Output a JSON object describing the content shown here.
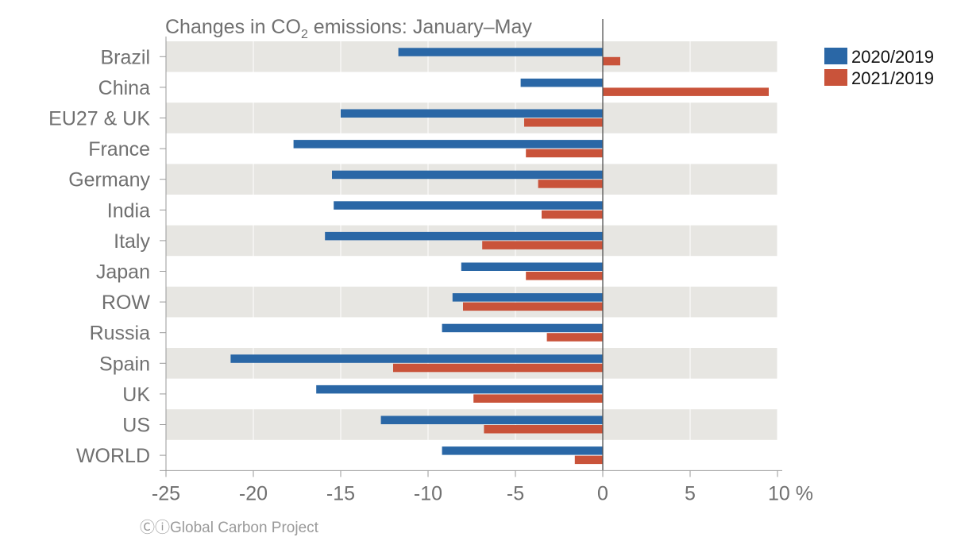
{
  "title": {
    "before": "Changes in CO",
    "sub": "2",
    "after": " emissions: January–May"
  },
  "credit": "ⒸⓘGlobal Carbon Project",
  "colors": {
    "series_2020": "#2a67a6",
    "series_2021": "#c9533a",
    "band": "#e7e6e2",
    "axis_text": "#707070"
  },
  "chart_data": {
    "type": "bar",
    "orientation": "horizontal",
    "categories": [
      "Brazil",
      "China",
      "EU27 & UK",
      "France",
      "Germany",
      "India",
      "Italy",
      "Japan",
      "ROW",
      "Russia",
      "Spain",
      "UK",
      "US",
      "WORLD"
    ],
    "series": [
      {
        "name": "2020/2019",
        "values": [
          -11.7,
          -4.7,
          -15.0,
          -17.7,
          -15.5,
          -15.4,
          -15.9,
          -8.1,
          -8.6,
          -9.2,
          -21.3,
          -16.4,
          -12.7,
          -9.2
        ]
      },
      {
        "name": "2021/2019",
        "values": [
          1.0,
          9.5,
          -4.5,
          -4.4,
          -3.7,
          -3.5,
          -6.9,
          -4.4,
          -8.0,
          -3.2,
          -12.0,
          -7.4,
          -6.8,
          -1.6
        ]
      }
    ],
    "xlim": [
      -25,
      10
    ],
    "xticks": [
      -25,
      -20,
      -15,
      -10,
      -5,
      0,
      5,
      10
    ],
    "xtick_labels": [
      "-25",
      "-20",
      "-15",
      "-10",
      "-5",
      "0",
      "5",
      "10 %"
    ],
    "legend_position": "top-right",
    "grid": "vertical"
  }
}
